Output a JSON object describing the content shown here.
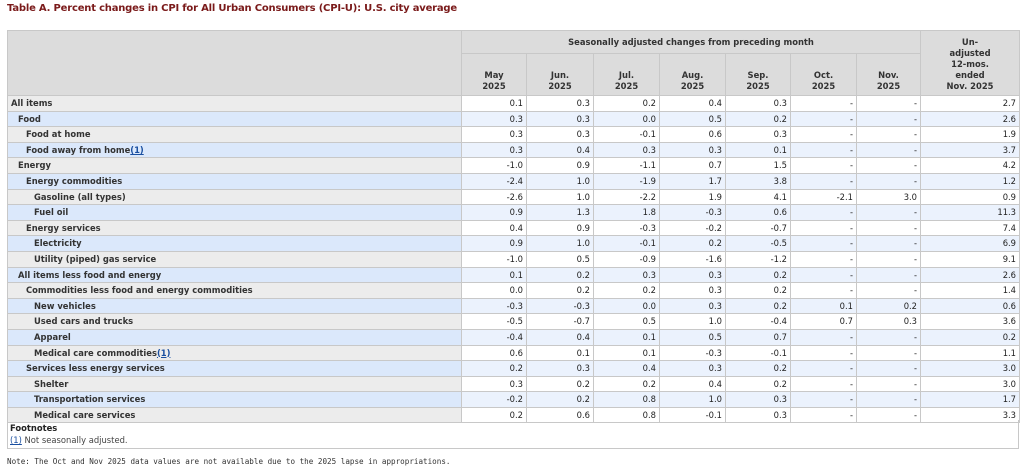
{
  "title": "Table A. Percent changes in CPI for All Urban Consumers (CPI-U): U.S. city average",
  "header": {
    "group": "Seasonally adjusted changes from preceding month",
    "unadjusted": [
      "Un-",
      "adjusted",
      "12-mos.",
      "ended",
      "Nov. 2025"
    ],
    "months": [
      [
        "May",
        "2025"
      ],
      [
        "Jun.",
        "2025"
      ],
      [
        "Jul.",
        "2025"
      ],
      [
        "Aug.",
        "2025"
      ],
      [
        "Sep.",
        "2025"
      ],
      [
        "Oct.",
        "2025"
      ],
      [
        "Nov.",
        "2025"
      ]
    ]
  },
  "rows": [
    {
      "label": "All items",
      "level": 0,
      "values": [
        "0.1",
        "0.3",
        "0.2",
        "0.4",
        "0.3",
        "-",
        "-",
        "2.7"
      ]
    },
    {
      "label": "Food",
      "level": 1,
      "values": [
        "0.3",
        "0.3",
        "0.0",
        "0.5",
        "0.2",
        "-",
        "-",
        "2.6"
      ]
    },
    {
      "label": "Food at home",
      "level": 2,
      "values": [
        "0.3",
        "0.3",
        "-0.1",
        "0.6",
        "0.3",
        "-",
        "-",
        "1.9"
      ]
    },
    {
      "label": "Food away from home",
      "footnote": "(1)",
      "level": 2,
      "values": [
        "0.3",
        "0.4",
        "0.3",
        "0.3",
        "0.1",
        "-",
        "-",
        "3.7"
      ]
    },
    {
      "label": "Energy",
      "level": 1,
      "values": [
        "-1.0",
        "0.9",
        "-1.1",
        "0.7",
        "1.5",
        "-",
        "-",
        "4.2"
      ]
    },
    {
      "label": "Energy commodities",
      "level": 2,
      "values": [
        "-2.4",
        "1.0",
        "-1.9",
        "1.7",
        "3.8",
        "-",
        "-",
        "1.2"
      ]
    },
    {
      "label": "Gasoline (all types)",
      "level": 3,
      "values": [
        "-2.6",
        "1.0",
        "-2.2",
        "1.9",
        "4.1",
        "-2.1",
        "3.0",
        "0.9"
      ]
    },
    {
      "label": "Fuel oil",
      "level": 3,
      "values": [
        "0.9",
        "1.3",
        "1.8",
        "-0.3",
        "0.6",
        "-",
        "-",
        "11.3"
      ]
    },
    {
      "label": "Energy services",
      "level": 2,
      "values": [
        "0.4",
        "0.9",
        "-0.3",
        "-0.2",
        "-0.7",
        "-",
        "-",
        "7.4"
      ]
    },
    {
      "label": "Electricity",
      "level": 3,
      "values": [
        "0.9",
        "1.0",
        "-0.1",
        "0.2",
        "-0.5",
        "-",
        "-",
        "6.9"
      ]
    },
    {
      "label": "Utility (piped) gas service",
      "level": 3,
      "values": [
        "-1.0",
        "0.5",
        "-0.9",
        "-1.6",
        "-1.2",
        "-",
        "-",
        "9.1"
      ]
    },
    {
      "label": "All items less food and energy",
      "level": 1,
      "values": [
        "0.1",
        "0.2",
        "0.3",
        "0.3",
        "0.2",
        "-",
        "-",
        "2.6"
      ]
    },
    {
      "label": "Commodities less food and energy commodities",
      "level": 2,
      "values": [
        "0.0",
        "0.2",
        "0.2",
        "0.3",
        "0.2",
        "-",
        "-",
        "1.4"
      ]
    },
    {
      "label": "New vehicles",
      "level": 3,
      "values": [
        "-0.3",
        "-0.3",
        "0.0",
        "0.3",
        "0.2",
        "0.1",
        "0.2",
        "0.6"
      ]
    },
    {
      "label": "Used cars and trucks",
      "level": 3,
      "values": [
        "-0.5",
        "-0.7",
        "0.5",
        "1.0",
        "-0.4",
        "0.7",
        "0.3",
        "3.6"
      ]
    },
    {
      "label": "Apparel",
      "level": 3,
      "values": [
        "-0.4",
        "0.4",
        "0.1",
        "0.5",
        "0.7",
        "-",
        "-",
        "0.2"
      ]
    },
    {
      "label": "Medical care commodities",
      "footnote": "(1)",
      "level": 3,
      "values": [
        "0.6",
        "0.1",
        "0.1",
        "-0.3",
        "-0.1",
        "-",
        "-",
        "1.1"
      ]
    },
    {
      "label": "Services less energy services",
      "level": 2,
      "values": [
        "0.2",
        "0.3",
        "0.4",
        "0.3",
        "0.2",
        "-",
        "-",
        "3.0"
      ]
    },
    {
      "label": "Shelter",
      "level": 3,
      "values": [
        "0.3",
        "0.2",
        "0.2",
        "0.4",
        "0.2",
        "-",
        "-",
        "3.0"
      ]
    },
    {
      "label": "Transportation services",
      "level": 3,
      "values": [
        "-0.2",
        "0.2",
        "0.8",
        "1.0",
        "0.3",
        "-",
        "-",
        "1.7"
      ]
    },
    {
      "label": "Medical care services",
      "level": 3,
      "values": [
        "0.2",
        "0.6",
        "0.8",
        "-0.1",
        "0.3",
        "-",
        "-",
        "3.3"
      ]
    }
  ],
  "footnotes": {
    "heading": "Footnotes",
    "ref": "(1)",
    "text": " Not seasonally adjusted."
  },
  "note": "Note: The Oct and Nov 2025 data values are not available due to the 2025 lapse in appropriations."
}
